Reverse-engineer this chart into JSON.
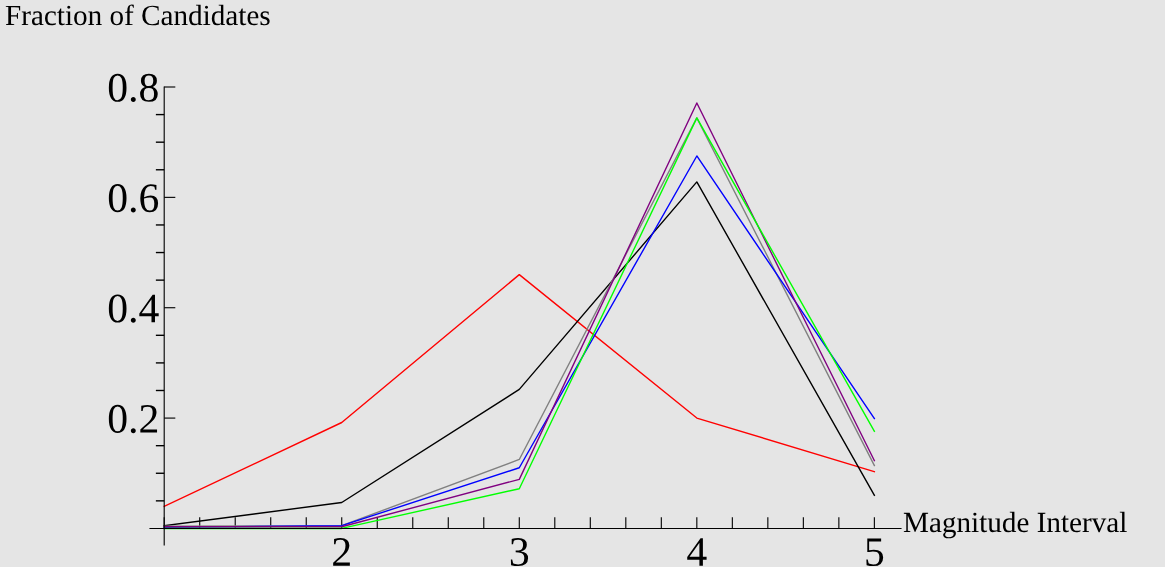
{
  "chart_data": {
    "type": "line",
    "xlabel": "Magnitude Interval",
    "ylabel": "Fraction of Candidates",
    "x": [
      1,
      2,
      3,
      4,
      5
    ],
    "series": [
      {
        "color": "#ff0000",
        "values": [
          0.04,
          0.192,
          0.46,
          0.2,
          0.103
        ]
      },
      {
        "color": "#000000",
        "values": [
          0.005,
          0.047,
          0.252,
          0.628,
          0.06
        ]
      },
      {
        "color": "#808080",
        "values": [
          0.004,
          0.005,
          0.125,
          0.744,
          0.114
        ]
      },
      {
        "color": "#0000ff",
        "values": [
          0.002,
          0.005,
          0.11,
          0.675,
          0.199
        ]
      },
      {
        "color": "#800080",
        "values": [
          0.003,
          0.003,
          0.089,
          0.771,
          0.123
        ]
      },
      {
        "color": "#00ff00",
        "values": [
          0,
          0,
          0.072,
          0.744,
          0.176
        ]
      }
    ],
    "xlim": [
      0.92,
      5.15
    ],
    "ylim": [
      -0.03,
      0.8
    ],
    "xticks": [
      {
        "value": 1,
        "label": null
      },
      {
        "value": 1.2,
        "label": null
      },
      {
        "value": 1.4,
        "label": null
      },
      {
        "value": 1.6,
        "label": null
      },
      {
        "value": 1.8,
        "label": null
      },
      2,
      {
        "value": 2.2,
        "label": null
      },
      {
        "value": 2.4,
        "label": null
      },
      {
        "value": 2.6,
        "label": null
      },
      {
        "value": 2.8,
        "label": null
      },
      3,
      {
        "value": 3.2,
        "label": null
      },
      {
        "value": 3.4,
        "label": null
      },
      {
        "value": 3.6,
        "label": null
      },
      {
        "value": 3.8,
        "label": null
      },
      4,
      {
        "value": 4.2,
        "label": null
      },
      {
        "value": 4.4,
        "label": null
      },
      {
        "value": 4.6,
        "label": null
      },
      {
        "value": 4.8,
        "label": null
      },
      5
    ],
    "yticks": [
      {
        "value": 0.05,
        "label": null
      },
      {
        "value": 0.1,
        "label": null
      },
      {
        "value": 0.15,
        "label": null
      },
      0.2,
      {
        "value": 0.25,
        "label": null
      },
      {
        "value": 0.3,
        "label": null
      },
      {
        "value": 0.35,
        "label": null
      },
      0.4,
      {
        "value": 0.45,
        "label": null
      },
      {
        "value": 0.5,
        "label": null
      },
      {
        "value": 0.55,
        "label": null
      },
      0.6,
      {
        "value": 0.65,
        "label": null
      },
      {
        "value": 0.7,
        "label": null
      },
      {
        "value": 0.75,
        "label": null
      },
      0.8
    ],
    "grid": false,
    "legend": false,
    "marker": "none",
    "line_style": "solid"
  }
}
